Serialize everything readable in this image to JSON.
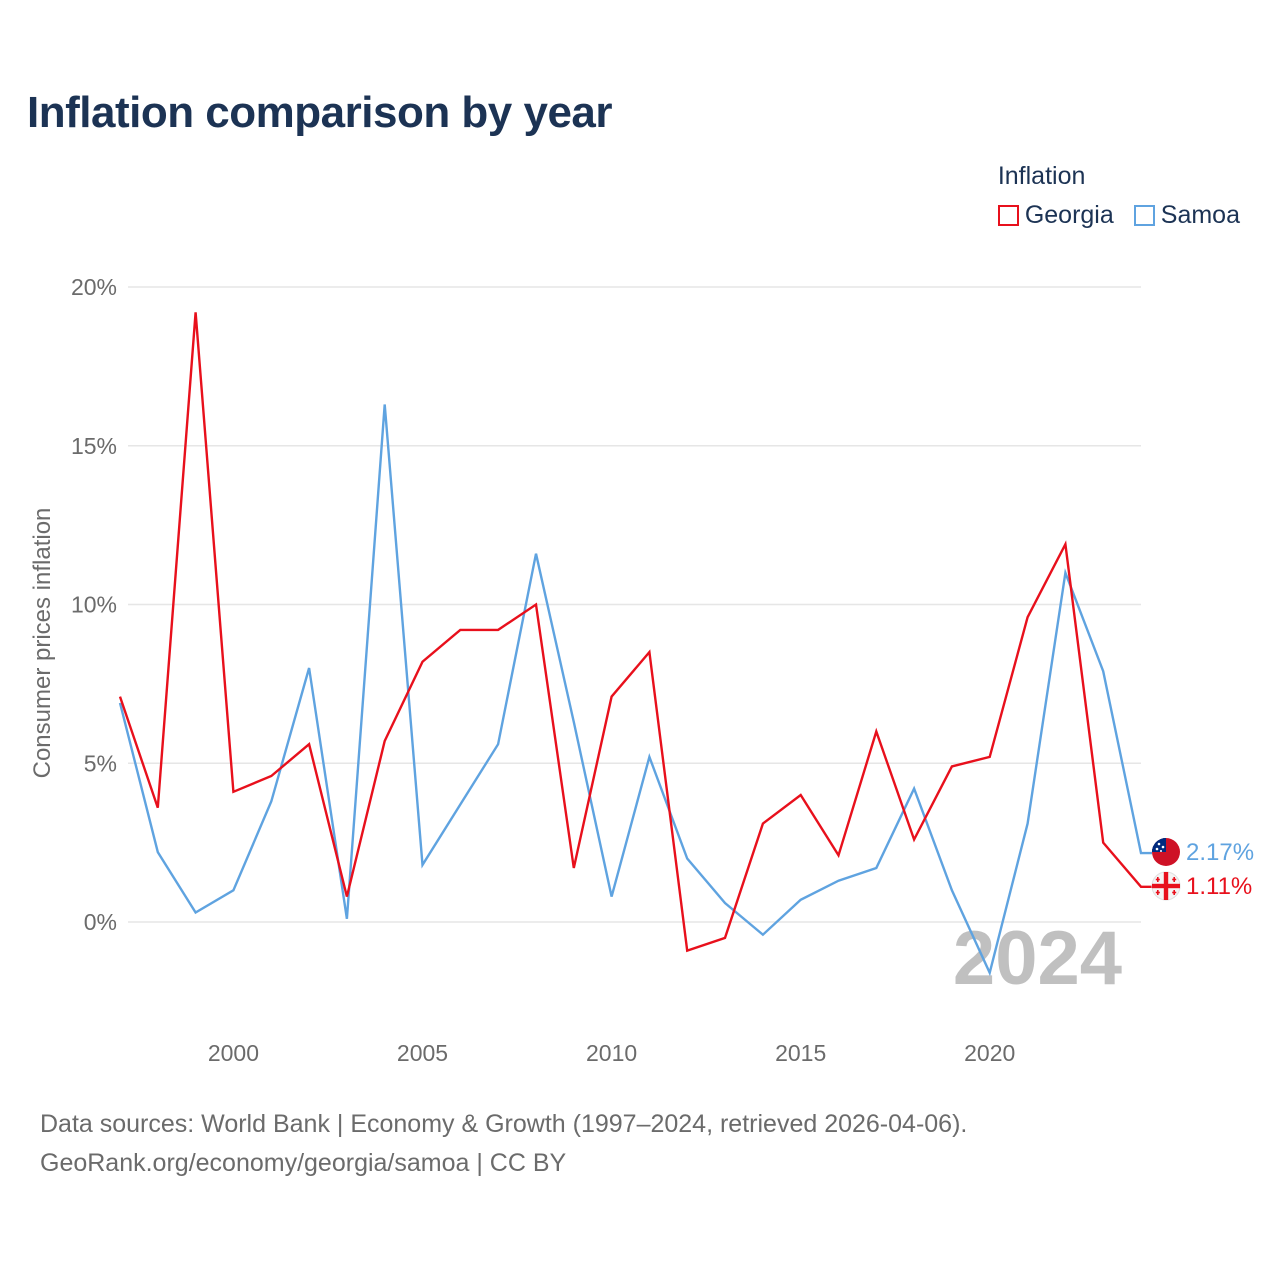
{
  "title": "Inflation comparison by year",
  "legend": {
    "title": "Inflation",
    "items": [
      {
        "label": "Georgia",
        "color": "#e8101c"
      },
      {
        "label": "Samoa",
        "color": "#5fa3e0"
      }
    ]
  },
  "footer": {
    "line1": "Data sources: World Bank | Economy & Growth (1997–2024, retrieved 2026-04-06).",
    "line2": "GeoRank.org/economy/georgia/samoa | CC BY"
  },
  "chart_data": {
    "type": "line",
    "ylabel": "Consumer prices inflation",
    "xlabel": "",
    "ylim": [
      -3,
      20
    ],
    "xlim": [
      1997,
      2024
    ],
    "yticks": [
      0,
      5,
      10,
      15,
      20
    ],
    "ytick_labels": [
      "0%",
      "5%",
      "10%",
      "15%",
      "20%"
    ],
    "xticks": [
      2000,
      2005,
      2010,
      2015,
      2020
    ],
    "xtick_labels": [
      "2000",
      "2005",
      "2010",
      "2015",
      "2020"
    ],
    "year_watermark": "2024",
    "x": [
      1997,
      1998,
      1999,
      2000,
      2001,
      2002,
      2003,
      2004,
      2005,
      2006,
      2007,
      2008,
      2009,
      2010,
      2011,
      2012,
      2013,
      2014,
      2015,
      2016,
      2017,
      2018,
      2019,
      2020,
      2021,
      2022,
      2023,
      2024
    ],
    "series": [
      {
        "name": "Samoa",
        "color": "#5fa3e0",
        "end_label": "2.17%",
        "values": [
          6.9,
          2.2,
          0.3,
          1.0,
          3.8,
          8.0,
          0.1,
          16.3,
          1.8,
          3.7,
          5.6,
          11.6,
          6.3,
          0.8,
          5.2,
          2.0,
          0.6,
          -0.4,
          0.7,
          1.3,
          1.7,
          4.2,
          1.0,
          -1.6,
          3.1,
          11.0,
          7.9,
          2.17
        ]
      },
      {
        "name": "Georgia",
        "color": "#e8101c",
        "end_label": "1.11%",
        "values": [
          7.1,
          3.6,
          19.2,
          4.1,
          4.6,
          5.6,
          0.8,
          5.7,
          8.2,
          9.2,
          9.2,
          10.0,
          1.7,
          7.1,
          8.5,
          -0.9,
          -0.5,
          3.1,
          4.0,
          2.1,
          6.0,
          2.6,
          4.9,
          5.2,
          9.6,
          11.9,
          2.5,
          1.11
        ]
      }
    ]
  }
}
